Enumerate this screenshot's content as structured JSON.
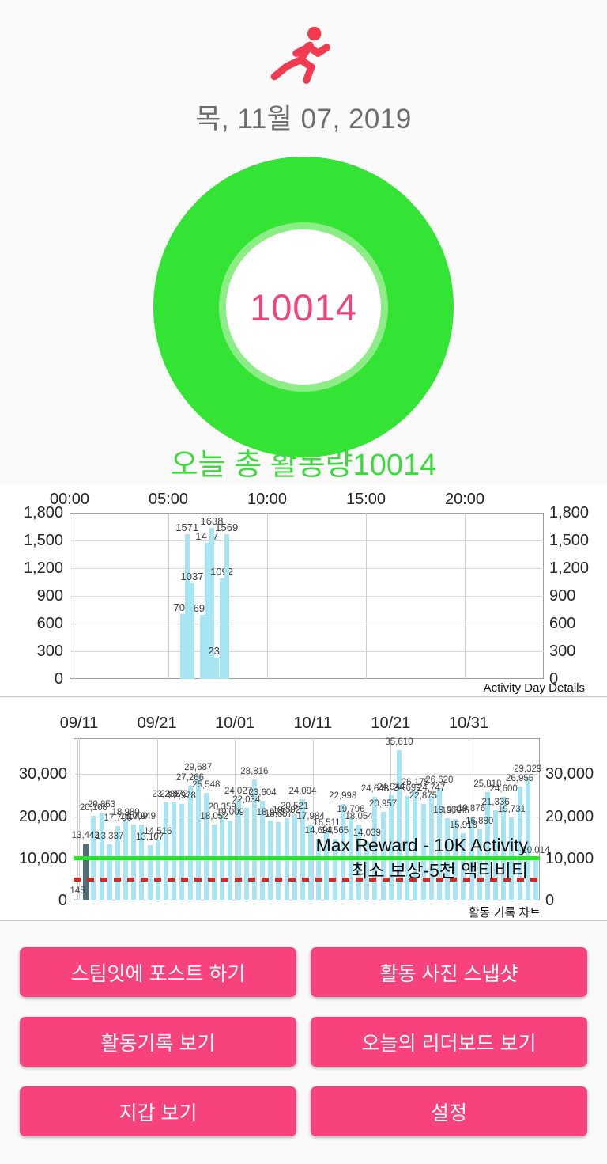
{
  "header": {
    "date_label": "목, 11월 07, 2019",
    "runner_icon": "runner-icon",
    "runner_color": "#f23b50"
  },
  "donut": {
    "value": "10014",
    "ring_color": "#34e434",
    "inner_ring_color": "#8cec86",
    "value_color": "#f0437a"
  },
  "summary": {
    "label": "오늘 총 활동량10014",
    "color": "#3bdb3b"
  },
  "chart_data": [
    {
      "name": "hourly_activity",
      "type": "bar",
      "caption": "Activity Day Details",
      "bar_color": "#a7e5f3",
      "x_axis": {
        "ticks": [
          "00:00",
          "05:00",
          "10:00",
          "15:00",
          "20:00"
        ],
        "tick_hours": [
          0,
          5,
          10,
          15,
          20
        ],
        "range_hours": [
          0,
          24
        ]
      },
      "y_axis": {
        "ticks": [
          "0",
          "300",
          "600",
          "900",
          "1,200",
          "1,500",
          "1,800"
        ],
        "tick_values": [
          0,
          300,
          600,
          900,
          1200,
          1500,
          1800
        ],
        "range": [
          0,
          1800
        ],
        "sides": "both"
      },
      "bars": [
        {
          "hour": 5.7,
          "value": 701
        },
        {
          "hour": 5.95,
          "value": 1571
        },
        {
          "hour": 6.2,
          "value": 1037
        },
        {
          "hour": 6.7,
          "value": 697
        },
        {
          "hour": 6.95,
          "value": 1477
        },
        {
          "hour": 7.2,
          "value": 1638
        },
        {
          "hour": 7.45,
          "value": 232
        },
        {
          "hour": 7.7,
          "value": 1092
        },
        {
          "hour": 7.95,
          "value": 1569
        }
      ]
    },
    {
      "name": "daily_activity",
      "type": "bar",
      "caption": "활동 기록 차트",
      "bar_color": "#a7e5f3",
      "highlight_bar": {
        "index": 1,
        "color": "#4d7076"
      },
      "x_axis": {
        "ticks": [
          "09/11",
          "09/21",
          "10/01",
          "10/11",
          "10/21",
          "10/31"
        ]
      },
      "y_axis": {
        "ticks": [
          "0",
          "10,000",
          "20,000",
          "30,000"
        ],
        "tick_values": [
          0,
          10000,
          20000,
          30000
        ],
        "range": [
          0,
          38500
        ],
        "sides": "both"
      },
      "values": [
        145,
        13442,
        20108,
        20853,
        13337,
        17706,
        18980,
        18009,
        17949,
        13107,
        14516,
        23283,
        23372,
        22978,
        27266,
        29687,
        25548,
        18052,
        20359,
        19009,
        24027,
        22034,
        28816,
        23604,
        18973,
        18657,
        19592,
        20521,
        24094,
        17984,
        14694,
        16511,
        14565,
        22998,
        19796,
        18054,
        14039,
        24648,
        20957,
        24944,
        35610,
        24699,
        26175,
        22875,
        24747,
        26620,
        19560,
        19385,
        15918,
        19876,
        16880,
        25818,
        21336,
        24600,
        19731,
        26955,
        29329,
        10014
      ],
      "reference_lines": [
        {
          "value": 10000,
          "color": "#2ce22c",
          "style": "solid",
          "label": "Max Reward - 10K Activity"
        },
        {
          "value": 5000,
          "color": "#d02b23",
          "style": "dashed",
          "label": "최소 보상-5천 액티비티"
        }
      ]
    }
  ],
  "buttons": [
    {
      "name": "post-to-steemit-button",
      "label": "스팀잇에 포스트 하기"
    },
    {
      "name": "activity-snapshot-button",
      "label": "활동 사진 스냅샷"
    },
    {
      "name": "view-activity-log-button",
      "label": "활동기록 보기"
    },
    {
      "name": "view-leaderboard-button",
      "label": "오늘의 리더보드 보기"
    },
    {
      "name": "view-wallet-button",
      "label": "지갑 보기"
    },
    {
      "name": "settings-button",
      "label": "설정"
    }
  ],
  "colors": {
    "button_bg": "#f7427b",
    "button_text": "#ffffff",
    "bar_blue": "#a7e5f3",
    "bar_highlight": "#4d7076",
    "grid": "#d6d6d6",
    "axis_text": "#262626"
  }
}
